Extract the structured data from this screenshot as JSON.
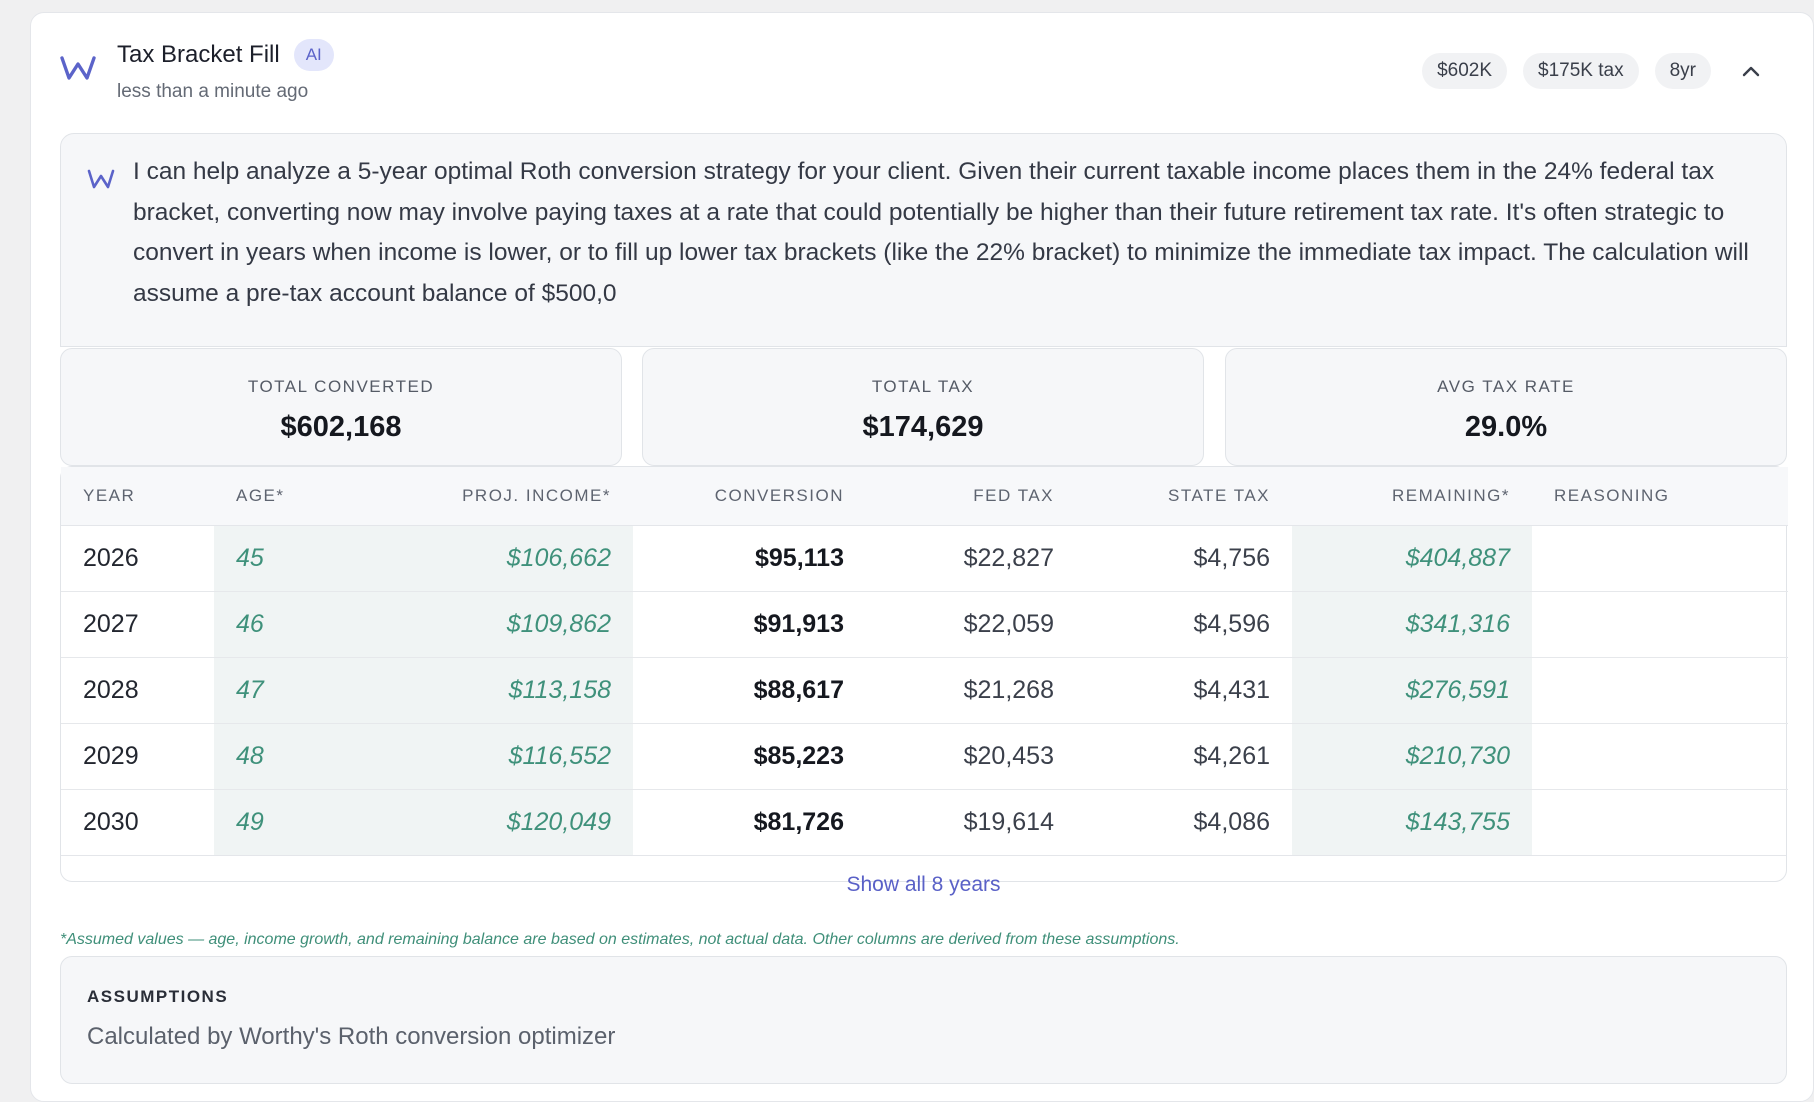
{
  "header": {
    "title": "Tax Bracket Fill",
    "ai_badge": "AI",
    "subtitle": "less than a minute ago",
    "pills": [
      "$602K",
      "$175K tax",
      "8yr"
    ],
    "logo_icon": "worthy-logo-icon",
    "collapse_icon": "chevron-up-icon"
  },
  "message": {
    "text": "I can help analyze a 5-year optimal Roth conversion strategy for your client. Given their current taxable income places them in the 24% federal tax bracket, converting now may involve paying taxes at a rate that could potentially be higher than their future retirement tax rate. It's often strategic to convert in years when income is lower, or to fill up lower tax brackets (like the 22% bracket) to minimize the immediate tax impact. The calculation will assume a pre-tax account balance of $500,0"
  },
  "stats": [
    {
      "label": "TOTAL CONVERTED",
      "value": "$602,168"
    },
    {
      "label": "TOTAL TAX",
      "value": "$174,629"
    },
    {
      "label": "AVG TAX RATE",
      "value": "29.0%"
    }
  ],
  "table": {
    "headers": [
      "YEAR",
      "AGE*",
      "PROJ. INCOME*",
      "CONVERSION",
      "FED TAX",
      "STATE TAX",
      "REMAINING*",
      "REASONING"
    ],
    "rows": [
      [
        "2026",
        "45",
        "$106,662",
        "$95,113",
        "$22,827",
        "$4,756",
        "$404,887",
        ""
      ],
      [
        "2027",
        "46",
        "$109,862",
        "$91,913",
        "$22,059",
        "$4,596",
        "$341,316",
        ""
      ],
      [
        "2028",
        "47",
        "$113,158",
        "$88,617",
        "$21,268",
        "$4,431",
        "$276,591",
        ""
      ],
      [
        "2029",
        "48",
        "$116,552",
        "$85,223",
        "$20,453",
        "$4,261",
        "$210,730",
        ""
      ],
      [
        "2030",
        "49",
        "$120,049",
        "$81,726",
        "$19,614",
        "$4,086",
        "$143,755",
        ""
      ]
    ],
    "show_all": "Show all 8 years"
  },
  "footnote": "*Assumed values — age, income growth, and remaining balance are based on estimates, not actual data. Other columns are derived from these assumptions.",
  "assumptions": {
    "title": "ASSUMPTIONS",
    "text": "Calculated by Worthy's Roth conversion optimizer"
  },
  "colors": {
    "accent": "#5a61c7",
    "estimate_text": "#3f917b",
    "estimate_bg": "#f0f4f4"
  }
}
